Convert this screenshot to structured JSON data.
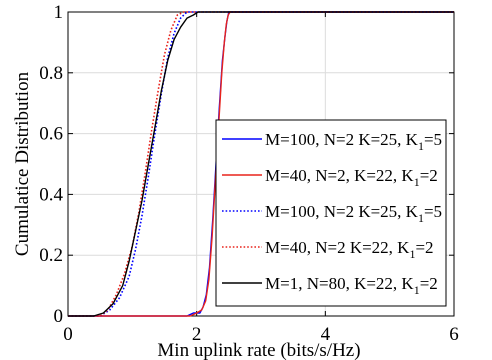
{
  "chart_data": {
    "type": "line",
    "xlabel": "Min uplink rate (bits/s/Hz)",
    "ylabel": "Cumulatice Distribution",
    "xlim": [
      0,
      6
    ],
    "ylim": [
      0,
      1
    ],
    "xticks": [
      "0",
      "2",
      "4",
      "6"
    ],
    "yticks": [
      "0",
      "0.2",
      "0.4",
      "0.6",
      "0.8",
      "1"
    ],
    "grid": true,
    "legend_position": "center-right",
    "series": [
      {
        "name": "M=100, N=2 K=25, K",
        "name_sub": "1",
        "name_suffix": "=5",
        "color": "#0000ff",
        "dash": "solid",
        "x": [
          0,
          1.5,
          1.85,
          1.95,
          2.05,
          2.1,
          2.15,
          2.2,
          2.25,
          2.3,
          2.35,
          2.4,
          2.44,
          2.47,
          2.5,
          6
        ],
        "y": [
          0,
          0,
          0,
          0.01,
          0.01,
          0.03,
          0.07,
          0.16,
          0.32,
          0.5,
          0.68,
          0.84,
          0.92,
          0.97,
          1,
          1
        ]
      },
      {
        "name": "M=40, N=2, K=22, K",
        "name_sub": "1",
        "name_suffix": "=2",
        "color": "#e8231c",
        "dash": "solid",
        "x": [
          0,
          1.9,
          2.0,
          2.08,
          2.14,
          2.19,
          2.24,
          2.29,
          2.34,
          2.39,
          2.43,
          2.46,
          2.49,
          2.52,
          6
        ],
        "y": [
          0,
          0,
          0.01,
          0.02,
          0.05,
          0.12,
          0.26,
          0.44,
          0.62,
          0.8,
          0.9,
          0.96,
          0.99,
          1,
          1
        ]
      },
      {
        "name": "M=100, N=2 K=25, K",
        "name_sub": "1",
        "name_suffix": "=5",
        "color": "#0000ff",
        "dash": "dotted",
        "x": [
          0,
          0.5,
          0.65,
          0.8,
          0.95,
          1.05,
          1.15,
          1.25,
          1.35,
          1.45,
          1.55,
          1.65,
          1.75,
          1.85,
          1.95,
          6
        ],
        "y": [
          0,
          0,
          0.02,
          0.06,
          0.13,
          0.22,
          0.33,
          0.46,
          0.6,
          0.73,
          0.85,
          0.93,
          0.98,
          1,
          1,
          1
        ]
      },
      {
        "name": "M=40, N=2 K=22, K",
        "name_sub": "1",
        "name_suffix": "=2",
        "color": "#e8231c",
        "dash": "dotted",
        "x": [
          0,
          0.5,
          0.62,
          0.75,
          0.88,
          1.0,
          1.1,
          1.2,
          1.3,
          1.4,
          1.5,
          1.6,
          1.7,
          1.8,
          1.9,
          6
        ],
        "y": [
          0,
          0,
          0.02,
          0.07,
          0.14,
          0.23,
          0.34,
          0.47,
          0.61,
          0.74,
          0.86,
          0.94,
          0.99,
          1,
          1,
          1
        ]
      },
      {
        "name": "M=1, N=80, K=22, K",
        "name_sub": "1",
        "name_suffix": "=2",
        "color": "#000000",
        "dash": "solid",
        "x": [
          0,
          0.4,
          0.55,
          0.7,
          0.85,
          0.95,
          1.05,
          1.15,
          1.25,
          1.35,
          1.45,
          1.55,
          1.65,
          1.75,
          1.85,
          1.95,
          2.02,
          6
        ],
        "y": [
          0,
          0,
          0.01,
          0.04,
          0.1,
          0.18,
          0.28,
          0.38,
          0.5,
          0.62,
          0.74,
          0.84,
          0.91,
          0.95,
          0.98,
          0.99,
          1,
          1
        ]
      }
    ]
  }
}
